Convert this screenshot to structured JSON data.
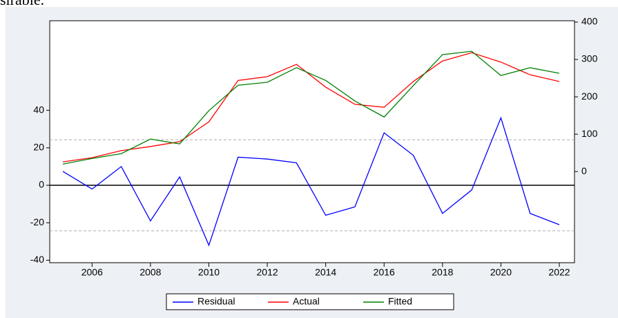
{
  "caption_fragment": "sirable.",
  "chart_data": {
    "type": "line",
    "x": [
      2005,
      2006,
      2007,
      2008,
      2009,
      2010,
      2011,
      2012,
      2013,
      2014,
      2015,
      2016,
      2017,
      2018,
      2019,
      2020,
      2021,
      2022
    ],
    "series": [
      {
        "name": "Residual",
        "color": "#0000ff",
        "axis": "y",
        "values": [
          7.4,
          -2,
          10,
          -19,
          4.5,
          -32,
          15,
          14,
          12,
          -16,
          -11.5,
          28,
          16,
          -15,
          -2.5,
          36,
          -15,
          -21
        ]
      },
      {
        "name": "Actual",
        "color": "#ff0000",
        "axis": "y2",
        "values": [
          26,
          37,
          56,
          67,
          80,
          133,
          244,
          254,
          287,
          226,
          180,
          172,
          241,
          296,
          318,
          293,
          259,
          241
        ]
      },
      {
        "name": "Fitted",
        "color": "#008000",
        "axis": "y2",
        "values": [
          20,
          35,
          48,
          87,
          74,
          163,
          231,
          239,
          278,
          244,
          189,
          146,
          230,
          313,
          322,
          257,
          278,
          263
        ]
      }
    ],
    "xlim": [
      2004.55,
      2022.52
    ],
    "xticks": [
      2006,
      2008,
      2010,
      2012,
      2014,
      2016,
      2018,
      2020,
      2022
    ],
    "ylim": [
      -41.3,
      87.8
    ],
    "yticks": [
      -40,
      -20,
      0,
      20,
      40
    ],
    "y2lim": [
      -244,
      403.7
    ],
    "y2ticks": [
      0,
      100,
      200,
      300,
      400
    ],
    "zero_line": 0,
    "bands": [
      24.3,
      -24.3
    ],
    "legend": "bottom"
  }
}
